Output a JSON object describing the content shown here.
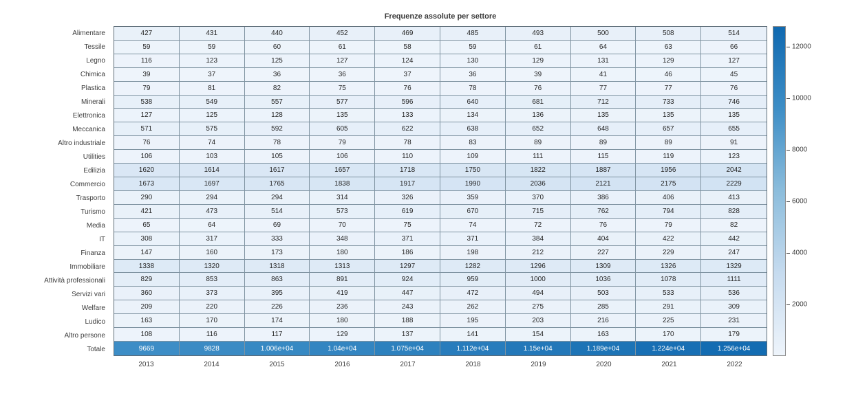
{
  "title": "Frequenze assolute per settore",
  "chart_data": {
    "type": "heatmap",
    "title": "Frequenze assolute per settore",
    "x_categories": [
      "2013",
      "2014",
      "2015",
      "2016",
      "2017",
      "2018",
      "2019",
      "2020",
      "2021",
      "2022"
    ],
    "rows": [
      {
        "label": "Alimentare",
        "values": [
          427,
          431,
          440,
          452,
          469,
          485,
          493,
          500,
          508,
          514
        ]
      },
      {
        "label": "Tessile",
        "values": [
          59,
          59,
          60,
          61,
          58,
          59,
          61,
          64,
          63,
          66
        ]
      },
      {
        "label": "Legno",
        "values": [
          116,
          123,
          125,
          127,
          124,
          130,
          129,
          131,
          129,
          127
        ]
      },
      {
        "label": "Chimica",
        "values": [
          39,
          37,
          36,
          36,
          37,
          36,
          39,
          41,
          46,
          45
        ]
      },
      {
        "label": "Plastica",
        "values": [
          79,
          81,
          82,
          75,
          76,
          78,
          76,
          77,
          77,
          76
        ]
      },
      {
        "label": "Minerali",
        "values": [
          538,
          549,
          557,
          577,
          596,
          640,
          681,
          712,
          733,
          746
        ]
      },
      {
        "label": "Elettronica",
        "values": [
          127,
          125,
          128,
          135,
          133,
          134,
          136,
          135,
          135,
          135
        ]
      },
      {
        "label": "Meccanica",
        "values": [
          571,
          575,
          592,
          605,
          622,
          638,
          652,
          648,
          657,
          655
        ]
      },
      {
        "label": "Altro industriale",
        "values": [
          76,
          74,
          78,
          79,
          78,
          83,
          89,
          89,
          89,
          91
        ]
      },
      {
        "label": "Utilities",
        "values": [
          106,
          103,
          105,
          106,
          110,
          109,
          111,
          115,
          119,
          123
        ]
      },
      {
        "label": "Edilizia",
        "values": [
          1620,
          1614,
          1617,
          1657,
          1718,
          1750,
          1822,
          1887,
          1956,
          2042
        ]
      },
      {
        "label": "Commercio",
        "values": [
          1673,
          1697,
          1765,
          1838,
          1917,
          1990,
          2036,
          2121,
          2175,
          2229
        ]
      },
      {
        "label": "Trasporto",
        "values": [
          290,
          294,
          294,
          314,
          326,
          359,
          370,
          386,
          406,
          413
        ]
      },
      {
        "label": "Turismo",
        "values": [
          421,
          473,
          514,
          573,
          619,
          670,
          715,
          762,
          794,
          828
        ]
      },
      {
        "label": "Media",
        "values": [
          65,
          64,
          69,
          70,
          75,
          74,
          72,
          76,
          79,
          82
        ]
      },
      {
        "label": "IT",
        "values": [
          308,
          317,
          333,
          348,
          371,
          371,
          384,
          404,
          422,
          442
        ]
      },
      {
        "label": "Finanza",
        "values": [
          147,
          160,
          173,
          180,
          186,
          198,
          212,
          227,
          229,
          247
        ]
      },
      {
        "label": "Immobiliare",
        "values": [
          1338,
          1320,
          1318,
          1313,
          1297,
          1282,
          1296,
          1309,
          1326,
          1329
        ]
      },
      {
        "label": "Attività professionali",
        "values": [
          829,
          853,
          863,
          891,
          924,
          959,
          1000,
          1036,
          1078,
          1111
        ]
      },
      {
        "label": "Servizi vari",
        "values": [
          360,
          373,
          395,
          419,
          447,
          472,
          494,
          503,
          533,
          536
        ]
      },
      {
        "label": "Welfare",
        "values": [
          209,
          220,
          226,
          236,
          243,
          262,
          275,
          285,
          291,
          309
        ]
      },
      {
        "label": "Ludico",
        "values": [
          163,
          170,
          174,
          180,
          188,
          195,
          203,
          216,
          225,
          231
        ]
      },
      {
        "label": "Altro persone",
        "values": [
          108,
          116,
          117,
          129,
          137,
          141,
          154,
          163,
          170,
          179
        ]
      },
      {
        "label": "Totale",
        "values": [
          9669,
          9828,
          10060,
          10400,
          10750,
          11120,
          11500,
          11890,
          12240,
          12560
        ],
        "display": [
          "9669",
          "9828",
          "1.006e+04",
          "1.04e+04",
          "1.075e+04",
          "1.112e+04",
          "1.15e+04",
          "1.189e+04",
          "1.224e+04",
          "1.256e+04"
        ]
      }
    ],
    "colorbar": {
      "ticks": [
        2000,
        4000,
        6000,
        8000,
        10000,
        12000
      ],
      "min": 0,
      "max": 12800,
      "position": "right"
    },
    "colormap_stops": [
      "#eef4fb",
      "#c6dbef",
      "#8cbddc",
      "#3e8ec6",
      "#1069b0"
    ],
    "color_domain": [
      0,
      12800
    ],
    "text_colors": {
      "dark": "#262626",
      "light": "#ffffff"
    },
    "grid": true,
    "legend_position": "none"
  }
}
